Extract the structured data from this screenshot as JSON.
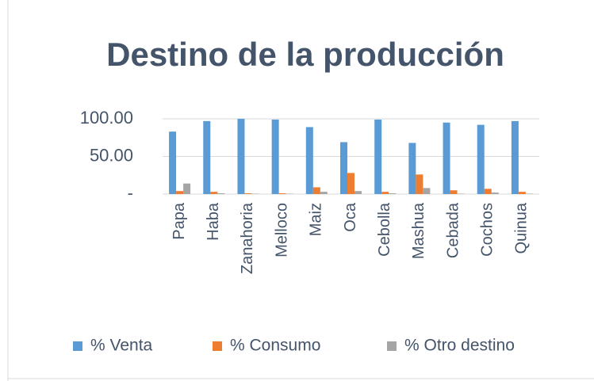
{
  "chart_data": {
    "type": "bar",
    "title": "Destino de la producción",
    "categories": [
      "Papa",
      "Haba",
      "Zanahoria",
      "Melloco",
      "Maiz",
      "Oca",
      "Cebolla",
      "Mashua",
      "Cebada",
      "Cochos",
      "Quinua"
    ],
    "series": [
      {
        "name": "% Venta",
        "color": "#5b9bd5",
        "values": [
          83,
          97,
          100,
          99,
          89,
          69,
          99,
          68,
          95,
          92,
          97
        ]
      },
      {
        "name": "% Consumo",
        "color": "#ed7d31",
        "values": [
          4,
          3,
          1,
          1,
          9,
          28,
          3,
          26,
          5,
          7,
          3
        ]
      },
      {
        "name": "% Otro destino",
        "color": "#a5a5a5",
        "values": [
          14,
          1,
          0.5,
          0.5,
          3,
          4,
          1,
          8,
          0.5,
          2,
          0.5
        ]
      }
    ],
    "ylim": [
      0,
      100
    ],
    "yticks": [
      {
        "value": 0,
        "label": "-"
      },
      {
        "value": 50,
        "label": "50.00"
      },
      {
        "value": 100,
        "label": "100.00"
      }
    ],
    "grid": true,
    "legend": "bottom"
  }
}
